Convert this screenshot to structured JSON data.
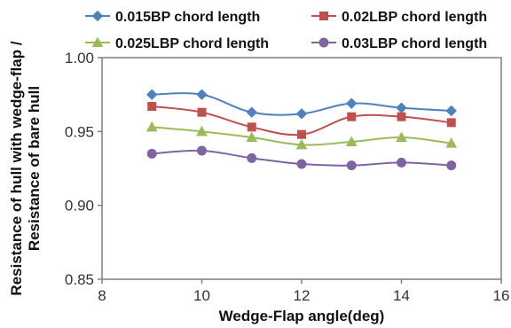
{
  "chart_data": {
    "type": "line",
    "title": "",
    "xlabel": "Wedge-Flap angle(deg)",
    "ylabel_line1": "Resistance of  hull with wedge-flap /",
    "ylabel_line2": "Resistance of  bare hull",
    "xlim": [
      8,
      16
    ],
    "ylim": [
      0.85,
      1.0
    ],
    "x_ticks": [
      "8",
      "10",
      "12",
      "14",
      "16"
    ],
    "y_ticks": [
      "0.85",
      "0.90",
      "0.95",
      "1.00"
    ],
    "grid": false,
    "legend_position": "top",
    "x": [
      9,
      10,
      11,
      12,
      13,
      14,
      15
    ],
    "series": [
      {
        "name": "0.015BP chord length",
        "color": "#4f81bd",
        "marker": "diamond",
        "values": [
          0.975,
          0.975,
          0.963,
          0.962,
          0.969,
          0.966,
          0.964
        ]
      },
      {
        "name": "0.02LBP chord length",
        "color": "#c0504d",
        "marker": "square",
        "values": [
          0.967,
          0.963,
          0.953,
          0.948,
          0.96,
          0.96,
          0.956
        ]
      },
      {
        "name": "0.025LBP chord length",
        "color": "#9bbb59",
        "marker": "triangle",
        "values": [
          0.953,
          0.95,
          0.946,
          0.941,
          0.943,
          0.946,
          0.942
        ]
      },
      {
        "name": "0.03LBP chord length",
        "color": "#8064a2",
        "marker": "circle",
        "values": [
          0.935,
          0.937,
          0.932,
          0.928,
          0.927,
          0.929,
          0.927
        ]
      }
    ]
  }
}
